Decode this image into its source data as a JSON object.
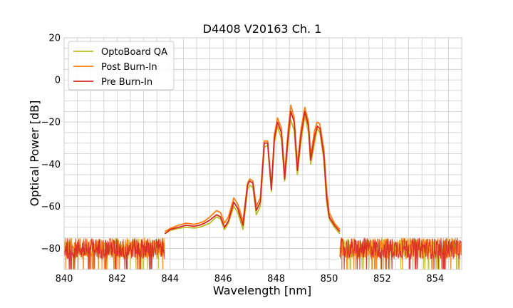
{
  "chart_data": {
    "type": "line",
    "title": "D4408 V20163 Ch. 1",
    "xlabel": "Wavelength [nm]",
    "ylabel": "Optical Power [dB]",
    "xlim": [
      840,
      855
    ],
    "ylim": [
      -90,
      20
    ],
    "x_ticks": [
      "840",
      "842",
      "844",
      "846",
      "848",
      "850",
      "852",
      "854"
    ],
    "y_ticks": [
      "20",
      "0",
      "−20",
      "−40",
      "−60",
      "−80"
    ],
    "grid": true,
    "grid_color": "#cccccc",
    "legend_position": "top-left",
    "noise_floor": {
      "x_start": 840,
      "x_end": 855,
      "mean_db": -80,
      "min_db": -90,
      "max_db": -72
    },
    "series": [
      {
        "name": "OptoBoard QA",
        "color": "#bcbd22",
        "points": [
          [
            843.8,
            -73
          ],
          [
            844.0,
            -71.5
          ],
          [
            844.3,
            -70.5
          ],
          [
            844.6,
            -70
          ],
          [
            844.9,
            -70.3
          ],
          [
            845.1,
            -70
          ],
          [
            845.3,
            -69
          ],
          [
            845.5,
            -68
          ],
          [
            845.75,
            -65
          ],
          [
            845.9,
            -66
          ],
          [
            846.05,
            -71
          ],
          [
            846.2,
            -68
          ],
          [
            846.4,
            -60
          ],
          [
            846.55,
            -63
          ],
          [
            846.75,
            -71
          ],
          [
            846.92,
            -52
          ],
          [
            847.0,
            -50
          ],
          [
            847.12,
            -51
          ],
          [
            847.25,
            -64
          ],
          [
            847.4,
            -60
          ],
          [
            847.55,
            -32
          ],
          [
            847.68,
            -31
          ],
          [
            847.82,
            -53
          ],
          [
            847.93,
            -30
          ],
          [
            848.05,
            -22
          ],
          [
            848.2,
            -28
          ],
          [
            848.32,
            -48
          ],
          [
            848.45,
            -30
          ],
          [
            848.55,
            -19
          ],
          [
            848.68,
            -24
          ],
          [
            848.8,
            -45
          ],
          [
            848.93,
            -30
          ],
          [
            849.08,
            -17
          ],
          [
            849.22,
            -25
          ],
          [
            849.3,
            -40
          ],
          [
            849.45,
            -30
          ],
          [
            849.55,
            -23
          ],
          [
            849.65,
            -25
          ],
          [
            849.8,
            -38
          ],
          [
            849.9,
            -58
          ],
          [
            850.0,
            -66
          ],
          [
            850.2,
            -70
          ],
          [
            850.4,
            -73
          ]
        ]
      },
      {
        "name": "Post Burn-In",
        "color": "#ff7f0e",
        "points": [
          [
            843.8,
            -72
          ],
          [
            844.0,
            -70.5
          ],
          [
            844.3,
            -69
          ],
          [
            844.6,
            -68
          ],
          [
            844.9,
            -68.5
          ],
          [
            845.1,
            -68
          ],
          [
            845.3,
            -67
          ],
          [
            845.5,
            -65
          ],
          [
            845.75,
            -62
          ],
          [
            845.9,
            -63
          ],
          [
            846.05,
            -68
          ],
          [
            846.2,
            -65
          ],
          [
            846.4,
            -56
          ],
          [
            846.55,
            -59
          ],
          [
            846.75,
            -67
          ],
          [
            846.92,
            -49
          ],
          [
            847.0,
            -47
          ],
          [
            847.12,
            -48
          ],
          [
            847.25,
            -60
          ],
          [
            847.4,
            -56
          ],
          [
            847.55,
            -29
          ],
          [
            847.68,
            -29
          ],
          [
            847.82,
            -51
          ],
          [
            847.93,
            -26
          ],
          [
            848.05,
            -18
          ],
          [
            848.2,
            -23
          ],
          [
            848.32,
            -45
          ],
          [
            848.45,
            -24
          ],
          [
            848.55,
            -12
          ],
          [
            848.68,
            -18
          ],
          [
            848.8,
            -41
          ],
          [
            848.93,
            -24
          ],
          [
            849.08,
            -13
          ],
          [
            849.22,
            -20
          ],
          [
            849.3,
            -36
          ],
          [
            849.45,
            -24
          ],
          [
            849.55,
            -20
          ],
          [
            849.65,
            -21
          ],
          [
            849.8,
            -33
          ],
          [
            849.9,
            -52
          ],
          [
            850.0,
            -63
          ],
          [
            850.2,
            -68
          ],
          [
            850.4,
            -71
          ]
        ]
      },
      {
        "name": "Pre Burn-In",
        "color": "#d62728",
        "points": [
          [
            843.8,
            -73
          ],
          [
            844.0,
            -71
          ],
          [
            844.3,
            -70
          ],
          [
            844.6,
            -69
          ],
          [
            844.9,
            -69.5
          ],
          [
            845.1,
            -69
          ],
          [
            845.3,
            -68
          ],
          [
            845.5,
            -66.5
          ],
          [
            845.75,
            -64
          ],
          [
            845.9,
            -65
          ],
          [
            846.05,
            -70
          ],
          [
            846.2,
            -67
          ],
          [
            846.4,
            -58
          ],
          [
            846.55,
            -61
          ],
          [
            846.75,
            -69
          ],
          [
            846.92,
            -50
          ],
          [
            847.0,
            -48
          ],
          [
            847.12,
            -49
          ],
          [
            847.25,
            -62
          ],
          [
            847.4,
            -58
          ],
          [
            847.55,
            -30
          ],
          [
            847.68,
            -30
          ],
          [
            847.82,
            -52
          ],
          [
            847.93,
            -28
          ],
          [
            848.05,
            -20
          ],
          [
            848.2,
            -25
          ],
          [
            848.32,
            -47
          ],
          [
            848.45,
            -27
          ],
          [
            848.55,
            -15
          ],
          [
            848.68,
            -20
          ],
          [
            848.8,
            -43
          ],
          [
            848.93,
            -27
          ],
          [
            849.08,
            -15
          ],
          [
            849.22,
            -22
          ],
          [
            849.3,
            -38
          ],
          [
            849.45,
            -27
          ],
          [
            849.55,
            -22
          ],
          [
            849.65,
            -23
          ],
          [
            849.8,
            -36
          ],
          [
            849.9,
            -55
          ],
          [
            850.0,
            -65
          ],
          [
            850.2,
            -69
          ],
          [
            850.4,
            -72
          ]
        ]
      }
    ]
  }
}
